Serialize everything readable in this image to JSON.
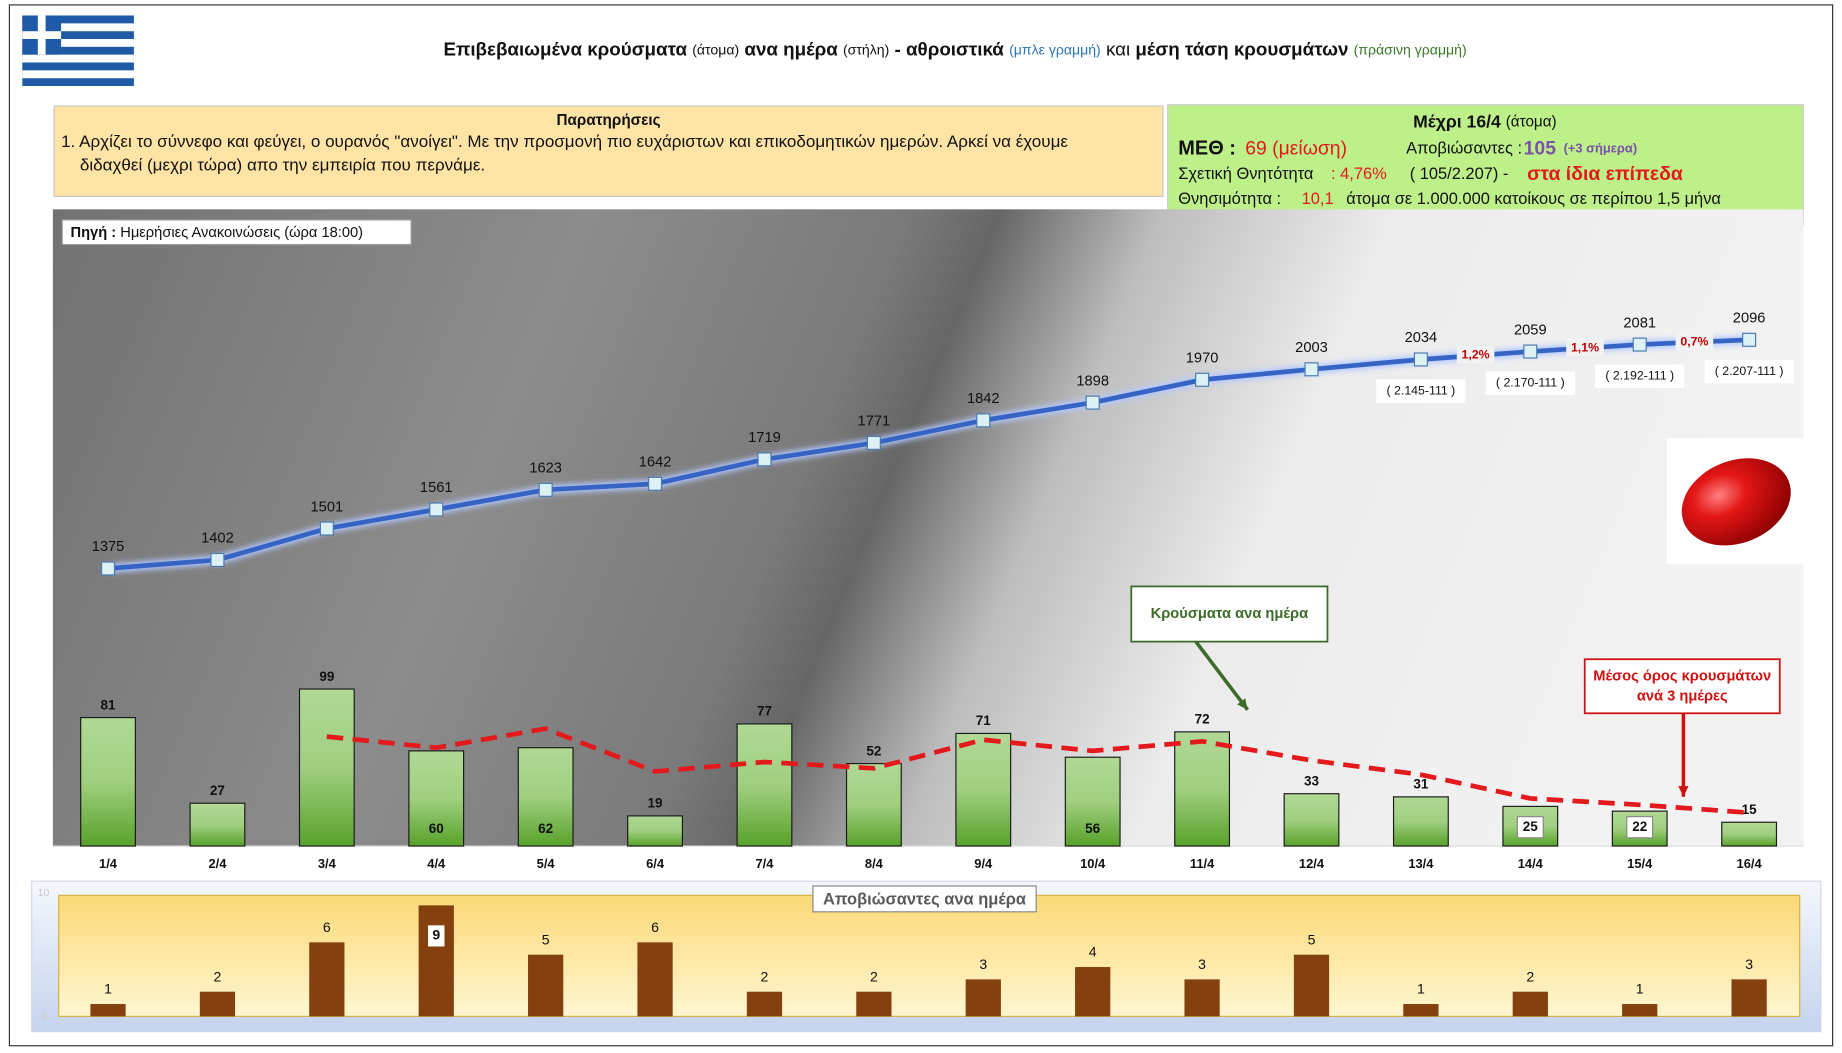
{
  "header": {
    "title_parts": [
      "Επιβεβαιωμένα κρούσματα",
      "(άτομα)",
      "ανα ημέρα",
      "(στήλη)",
      "- αθροιστικά",
      "(μπλε γραμμή)",
      "και",
      "μέση τάση κρουσμάτων",
      "(πράσινη γραμμή)"
    ]
  },
  "notes": {
    "title": "Παρατηρήσεις",
    "text": "1. Αρχίζει το σύννεφο και φεύγει, ο ουρανός \"ανοίγει\". Με την προσμονή πιο ευχάριστων και επικοδομητικών ημερών. Αρκεί να έχουμε διδαχθεί (μεχρι τώρα) απο την εμπειρία που περνάμε."
  },
  "stats": {
    "heading": "Μέχρι 16/4",
    "heading_unit": "(άτομα)",
    "icu_label": "ΜΕΘ :",
    "icu_value": "69 (μείωση)",
    "deaths_label": "Αποβιώσαντες :",
    "deaths_value": "105",
    "deaths_today": "(+3 σήμερα)",
    "cfr_label": "Σχετική Θνητότητα",
    "cfr_value": ": 4,76%",
    "cfr_ratio": "( 105/2.207) -",
    "cfr_note": "στα ίδια επίπεδα",
    "mortality_label": "Θνησιμότητα :",
    "mortality_value": "10,1",
    "mortality_text": "άτομα σε 1.000.000 κατοίκους σε περίπου 1,5 μήνα"
  },
  "source": {
    "label": "Πηγή :",
    "text": "Ημερήσιες Ανακοινώσεις (ώρα 18:00)"
  },
  "chart_data": [
    {
      "type": "bar",
      "categories": [
        "1/4",
        "2/4",
        "3/4",
        "4/4",
        "5/4",
        "6/4",
        "7/4",
        "8/4",
        "9/4",
        "10/4",
        "11/4",
        "12/4",
        "13/4",
        "14/4",
        "15/4",
        "16/4"
      ],
      "ylim": [
        0,
        400
      ],
      "y2lim": [
        500,
        2500
      ],
      "series": [
        {
          "name": "Κρούσματα ανα ημέρα",
          "type": "bar",
          "color": "#8cc468",
          "values": [
            81,
            27,
            99,
            60,
            62,
            19,
            77,
            52,
            71,
            56,
            72,
            33,
            31,
            25,
            22,
            15
          ]
        },
        {
          "type": "line",
          "axis": "y2",
          "color": "#3564c4",
          "values": [
            1375,
            1402,
            1501,
            1561,
            1623,
            1642,
            1719,
            1771,
            1842,
            1898,
            1970,
            2003,
            2034,
            2059,
            2081,
            2096
          ]
        },
        {
          "name": "Μέσος όρος κρουσμάτων ανά 3 ημέρες",
          "type": "line",
          "dashed": true,
          "color": "#e3191c",
          "values": [
            null,
            null,
            69,
            62,
            74,
            47,
            53,
            49,
            67,
            60,
            66,
            54,
            45,
            30,
            26,
            21
          ]
        }
      ],
      "growth_labels": [
        "1,2%",
        "1,1%",
        "0,7%"
      ],
      "cumulative_notes": [
        "( 2.145-111 )",
        "( 2.170-111 )",
        "( 2.192-111 )",
        "( 2.207-111 )"
      ]
    },
    {
      "type": "bar",
      "title": "Αποβιώσαντες ανα ημέρα",
      "color": "#84400f",
      "values": [
        1,
        2,
        6,
        9,
        5,
        6,
        2,
        2,
        3,
        4,
        3,
        5,
        1,
        2,
        1,
        3
      ],
      "ylim": [
        0,
        10
      ],
      "yticks": [
        0,
        10
      ]
    }
  ]
}
